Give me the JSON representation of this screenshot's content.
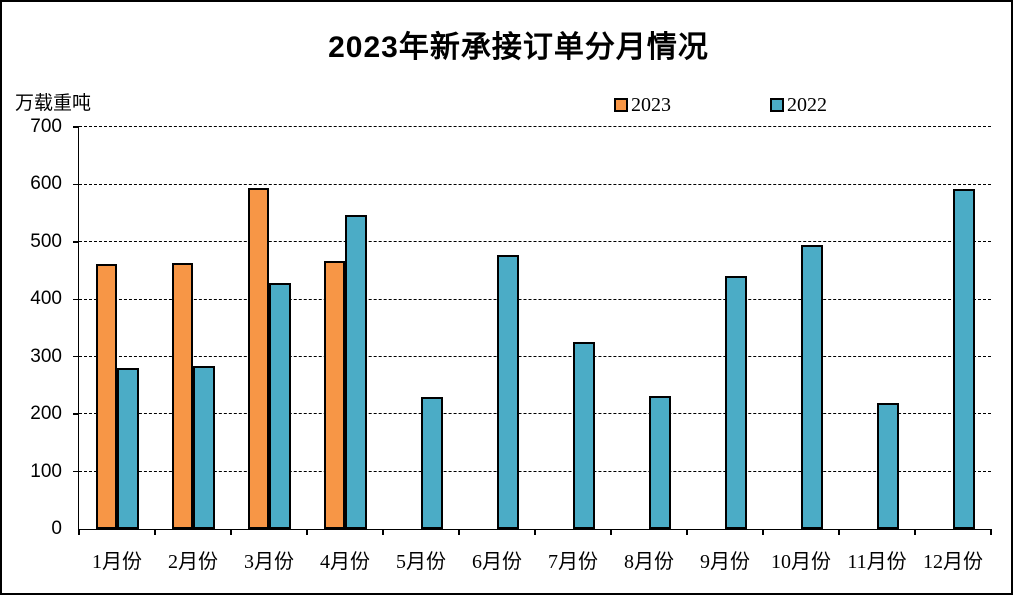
{
  "chart_data": {
    "type": "bar",
    "title": "2023年新承接订单分月情况",
    "ylabel": "万载重吨",
    "xlabel": "",
    "categories": [
      "1月份",
      "2月份",
      "3月份",
      "4月份",
      "5月份",
      "6月份",
      "7月份",
      "8月份",
      "9月份",
      "10月份",
      "11月份",
      "12月份"
    ],
    "series": [
      {
        "name": "2023",
        "color": "#F79646",
        "values": [
          462,
          463,
          594,
          466,
          null,
          null,
          null,
          null,
          null,
          null,
          null,
          null
        ]
      },
      {
        "name": "2022",
        "color": "#4BACC6",
        "values": [
          281,
          283,
          428,
          546,
          230,
          477,
          326,
          232,
          440,
          494,
          220,
          592
        ]
      }
    ],
    "ylim": [
      0,
      700
    ],
    "yticks": [
      700,
      600,
      500,
      400,
      300,
      200,
      100,
      0
    ],
    "grid": "horizontal-dashed",
    "legend_position": "top",
    "bar_border_color": "#000000",
    "axis_color": "#000000",
    "background_color": "#FFFFFF"
  }
}
